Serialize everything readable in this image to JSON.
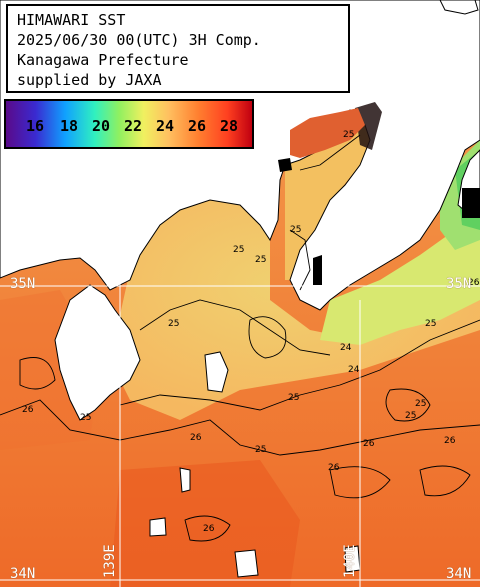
{
  "header": {
    "line1": "HIMAWARI SST",
    "line2": "2025/06/30 00(UTC) 3H Comp.",
    "line3": "Kanagawa Prefecture",
    "line4": "supplied by JAXA"
  },
  "color_scale": {
    "labels": [
      "16",
      "18",
      "20",
      "22",
      "24",
      "26",
      "28"
    ],
    "colors": [
      "#5a0a8a",
      "#3a2ad0",
      "#10a0ff",
      "#30f0c0",
      "#90f060",
      "#f0f060",
      "#ffc060",
      "#ff8030",
      "#ff4020",
      "#c00010"
    ]
  },
  "grid_labels": {
    "lat_35_left": "35N",
    "lat_35_right": "35N",
    "lat_34_left": "34N",
    "lat_34_right": "34N",
    "lon_139": "139E",
    "lon_140": "140E"
  },
  "contour_labels": [
    "25",
    "25",
    "25",
    "25",
    "25",
    "24",
    "24",
    "25",
    "26",
    "25",
    "26",
    "25",
    "26",
    "25",
    "26",
    "26",
    "25",
    "26",
    "25",
    "26"
  ],
  "colors": {
    "land": "#ffffff",
    "sea_warm": "#f08a3c",
    "sea_mid": "#f5b85a",
    "sea_cool": "#e8d870",
    "sea_cold": "#b8e870",
    "no_data": "#000000",
    "grid": "#ffffff"
  }
}
